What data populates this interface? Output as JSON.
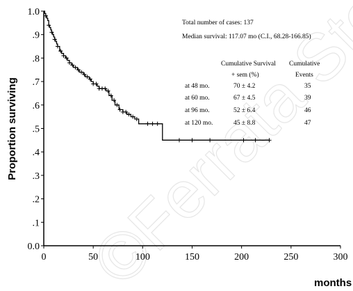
{
  "chart_data": {
    "type": "line",
    "title": "",
    "xlabel": "months",
    "ylabel": "Proportion surviving",
    "xlim": [
      0,
      300
    ],
    "ylim": [
      0,
      1
    ],
    "x_ticks": [
      0,
      50,
      100,
      150,
      200,
      250,
      300
    ],
    "y_tick_labels": [
      "0.0",
      ".1",
      ".2",
      ".3",
      ".4",
      ".5",
      ".6",
      ".7",
      ".8",
      ".9",
      "1.0"
    ],
    "grid": false,
    "series": [
      {
        "x": [
          0,
          1,
          2,
          3,
          4,
          5,
          6,
          7,
          8,
          9,
          10,
          11,
          12,
          13,
          14,
          16,
          18,
          20,
          22,
          24,
          26,
          28,
          30,
          32,
          34,
          36,
          38,
          40,
          42,
          44,
          46,
          48,
          50,
          52,
          54,
          56,
          58,
          60,
          63,
          66,
          69,
          72,
          76,
          80,
          84,
          88,
          92,
          96,
          108,
          114,
          120,
          228
        ],
        "y": [
          1.0,
          0.99,
          0.98,
          0.97,
          0.96,
          0.94,
          0.93,
          0.92,
          0.91,
          0.9,
          0.89,
          0.88,
          0.87,
          0.86,
          0.85,
          0.83,
          0.82,
          0.81,
          0.8,
          0.79,
          0.78,
          0.77,
          0.76,
          0.76,
          0.75,
          0.74,
          0.74,
          0.73,
          0.72,
          0.72,
          0.71,
          0.7,
          0.69,
          0.69,
          0.68,
          0.67,
          0.67,
          0.67,
          0.66,
          0.64,
          0.62,
          0.6,
          0.58,
          0.57,
          0.56,
          0.55,
          0.54,
          0.52,
          0.52,
          0.52,
          0.45,
          0.45
        ],
        "censored_x": [
          2,
          5,
          8,
          11,
          14,
          17,
          20,
          23,
          26,
          29,
          32,
          35,
          38,
          41,
          44,
          47,
          50,
          53,
          56,
          59,
          62,
          65,
          68,
          71,
          74,
          77,
          80,
          83,
          86,
          90,
          94,
          105,
          110,
          115,
          137,
          150,
          168,
          202,
          214,
          228
        ]
      }
    ],
    "annotations": {
      "total": "Total number of cases: 137",
      "median": "Median survival: 117.07 mo (C.I., 68.28-166.85)",
      "table_headers": [
        "Cumulative Survival",
        "+ sem (%)",
        "Cumulative",
        "Events"
      ],
      "table_rows": [
        [
          "at 48 mo.",
          "70 ± 4.2",
          "35"
        ],
        [
          "at 60 mo.",
          "67 ± 4.5",
          "39"
        ],
        [
          "at 96 mo.",
          "52 ± 6.4",
          "46"
        ],
        [
          "at 120 mo.",
          "45 ± 8.8",
          "47"
        ]
      ]
    },
    "watermark": "©Ferrata Storti"
  }
}
